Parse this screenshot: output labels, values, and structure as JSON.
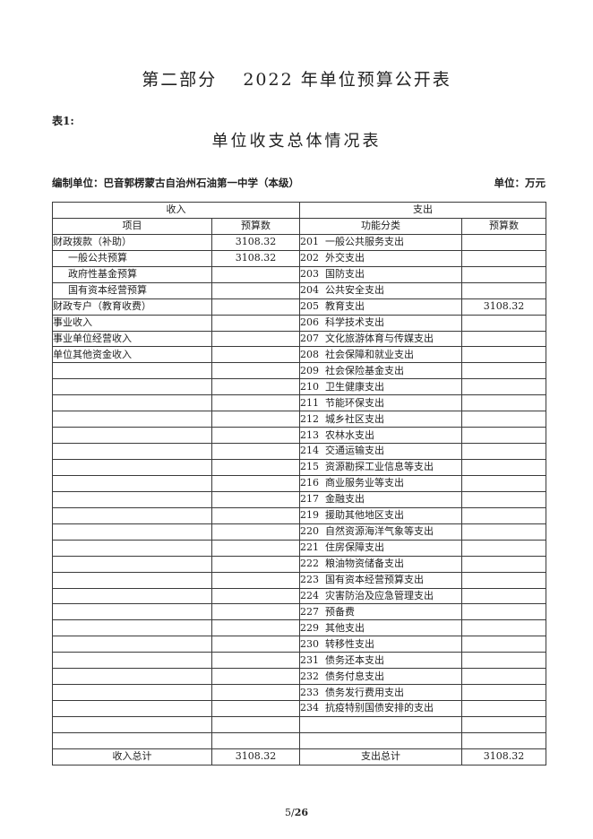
{
  "page": {
    "main_title": "第二部分　 2022 年单位预算公开表",
    "table_label": "表1:",
    "table_title": "单位收支总体情况表",
    "prepared_by": "编制单位：巴音郭楞蒙古自治州石油第一中学（本级）",
    "unit_label": "单位：万元"
  },
  "table": {
    "income_header": "收入",
    "expense_header": "支出",
    "columns": [
      "项目",
      "预算数",
      "功能分类",
      "预算数"
    ],
    "rows": [
      {
        "income_item": "财政拨款（补助）",
        "indent": false,
        "income_budget": "3108.32",
        "expense_item": "201  一般公共服务支出",
        "expense_budget": ""
      },
      {
        "income_item": "一般公共预算",
        "indent": true,
        "income_budget": "3108.32",
        "expense_item": "202  外交支出",
        "expense_budget": ""
      },
      {
        "income_item": "政府性基金预算",
        "indent": true,
        "income_budget": "",
        "expense_item": "203  国防支出",
        "expense_budget": ""
      },
      {
        "income_item": "国有资本经营预算",
        "indent": true,
        "income_budget": "",
        "expense_item": "204  公共安全支出",
        "expense_budget": ""
      },
      {
        "income_item": "财政专户（教育收费）",
        "indent": false,
        "income_budget": "",
        "expense_item": "205  教育支出",
        "expense_budget": "3108.32"
      },
      {
        "income_item": "事业收入",
        "indent": false,
        "income_budget": "",
        "expense_item": "206  科学技术支出",
        "expense_budget": ""
      },
      {
        "income_item": "事业单位经营收入",
        "indent": false,
        "income_budget": "",
        "expense_item": "207  文化旅游体育与传媒支出",
        "expense_budget": ""
      },
      {
        "income_item": "单位其他资金收入",
        "indent": false,
        "income_budget": "",
        "expense_item": "208  社会保障和就业支出",
        "expense_budget": ""
      },
      {
        "income_item": "",
        "indent": false,
        "income_budget": "",
        "expense_item": "209  社会保险基金支出",
        "expense_budget": ""
      },
      {
        "income_item": "",
        "indent": false,
        "income_budget": "",
        "expense_item": "210  卫生健康支出",
        "expense_budget": ""
      },
      {
        "income_item": "",
        "indent": false,
        "income_budget": "",
        "expense_item": "211  节能环保支出",
        "expense_budget": ""
      },
      {
        "income_item": "",
        "indent": false,
        "income_budget": "",
        "expense_item": "212  城乡社区支出",
        "expense_budget": ""
      },
      {
        "income_item": "",
        "indent": false,
        "income_budget": "",
        "expense_item": "213  农林水支出",
        "expense_budget": ""
      },
      {
        "income_item": "",
        "indent": false,
        "income_budget": "",
        "expense_item": "214  交通运输支出",
        "expense_budget": ""
      },
      {
        "income_item": "",
        "indent": false,
        "income_budget": "",
        "expense_item": "215  资源勘探工业信息等支出",
        "expense_budget": ""
      },
      {
        "income_item": "",
        "indent": false,
        "income_budget": "",
        "expense_item": "216  商业服务业等支出",
        "expense_budget": ""
      },
      {
        "income_item": "",
        "indent": false,
        "income_budget": "",
        "expense_item": "217  金融支出",
        "expense_budget": ""
      },
      {
        "income_item": "",
        "indent": false,
        "income_budget": "",
        "expense_item": "219  援助其他地区支出",
        "expense_budget": ""
      },
      {
        "income_item": "",
        "indent": false,
        "income_budget": "",
        "expense_item": "220  自然资源海洋气象等支出",
        "expense_budget": ""
      },
      {
        "income_item": "",
        "indent": false,
        "income_budget": "",
        "expense_item": "221  住房保障支出",
        "expense_budget": ""
      },
      {
        "income_item": "",
        "indent": false,
        "income_budget": "",
        "expense_item": "222  粮油物资储备支出",
        "expense_budget": ""
      },
      {
        "income_item": "",
        "indent": false,
        "income_budget": "",
        "expense_item": "223  国有资本经营预算支出",
        "expense_budget": ""
      },
      {
        "income_item": "",
        "indent": false,
        "income_budget": "",
        "expense_item": "224  灾害防治及应急管理支出",
        "expense_budget": ""
      },
      {
        "income_item": "",
        "indent": false,
        "income_budget": "",
        "expense_item": "227  预备费",
        "expense_budget": ""
      },
      {
        "income_item": "",
        "indent": false,
        "income_budget": "",
        "expense_item": "229  其他支出",
        "expense_budget": ""
      },
      {
        "income_item": "",
        "indent": false,
        "income_budget": "",
        "expense_item": "230  转移性支出",
        "expense_budget": ""
      },
      {
        "income_item": "",
        "indent": false,
        "income_budget": "",
        "expense_item": "231  债务还本支出",
        "expense_budget": ""
      },
      {
        "income_item": "",
        "indent": false,
        "income_budget": "",
        "expense_item": "232  债务付息支出",
        "expense_budget": ""
      },
      {
        "income_item": "",
        "indent": false,
        "income_budget": "",
        "expense_item": "233  债务发行费用支出",
        "expense_budget": ""
      },
      {
        "income_item": "",
        "indent": false,
        "income_budget": "",
        "expense_item": "234  抗疫特别国债安排的支出",
        "expense_budget": ""
      },
      {
        "income_item": "",
        "indent": false,
        "income_budget": "",
        "expense_item": "",
        "expense_budget": ""
      },
      {
        "income_item": "",
        "indent": false,
        "income_budget": "",
        "expense_item": "",
        "expense_budget": ""
      }
    ],
    "total_row": {
      "income_label": "收入总计",
      "income_value": "3108.32",
      "expense_label": "支出总计",
      "expense_value": "3108.32"
    }
  },
  "footer": {
    "page_number": "5",
    "separator": "/",
    "total_pages": "26"
  }
}
